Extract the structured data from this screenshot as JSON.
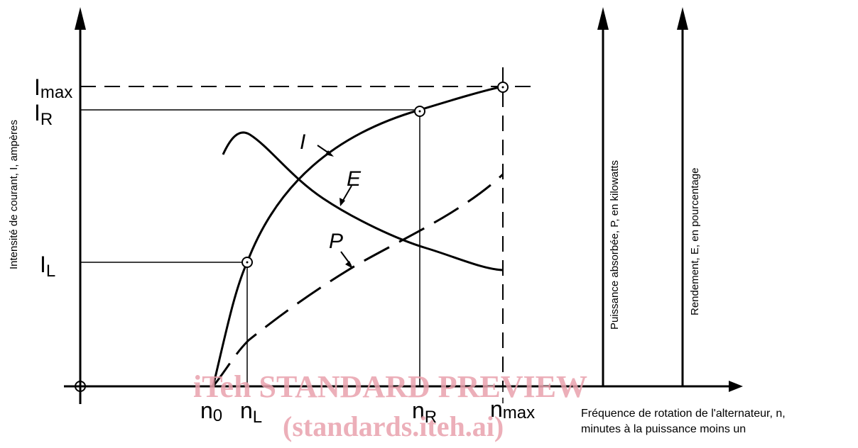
{
  "chart_data": {
    "type": "line",
    "title": "",
    "ylabel": "Intensité de courant, I, ampères",
    "xlabel_line1": "Fréquence de rotation de l'alternateur, n,",
    "xlabel_line2": "minutes à la puissance moins un",
    "ylabel_right1": "Puissance absorbée, P, en kilowatts",
    "ylabel_right2": "Rendement, E, en pourcentage",
    "x_ticks": [
      "n0",
      "nL",
      "nR",
      "nmax"
    ],
    "y_ticks": [
      "IL",
      "IR",
      "Imax"
    ],
    "series": [
      {
        "name": "I",
        "points": [
          [
            0,
            0
          ],
          [
            0.1,
            0.42
          ],
          [
            0.23,
            0.7
          ],
          [
            0.46,
            0.92
          ],
          [
            0.6,
            1.0
          ]
        ]
      },
      {
        "name": "E",
        "points": [
          [
            0.04,
            0.78
          ],
          [
            0.08,
            0.84
          ],
          [
            0.2,
            0.63
          ],
          [
            0.45,
            0.49
          ],
          [
            0.6,
            0.41
          ]
        ]
      },
      {
        "name": "P",
        "points": [
          [
            0.06,
            0.16
          ],
          [
            0.16,
            0.26
          ],
          [
            0.31,
            0.39
          ],
          [
            0.45,
            0.51
          ],
          [
            0.6,
            0.7
          ]
        ]
      }
    ],
    "markers": [
      [
        0,
        0
      ],
      [
        0.1,
        0.42
      ],
      [
        0.46,
        0.92
      ],
      [
        0.6,
        1.0
      ]
    ]
  },
  "labels": {
    "i_max": "I",
    "i_max_sub": "max",
    "i_r": "I",
    "i_r_sub": "R",
    "i_l": "I",
    "i_l_sub": "L",
    "n0": "n",
    "n0_sub": "0",
    "nl": "n",
    "nl_sub": "L",
    "nr": "n",
    "nr_sub": "R",
    "nmax": "n",
    "nmax_sub": "max",
    "curve_i": "I",
    "curve_e": "E",
    "curve_p": "P"
  },
  "watermark": {
    "line1": "iTeh STANDARD PREVIEW",
    "line2": "(standards.iteh.ai)"
  }
}
